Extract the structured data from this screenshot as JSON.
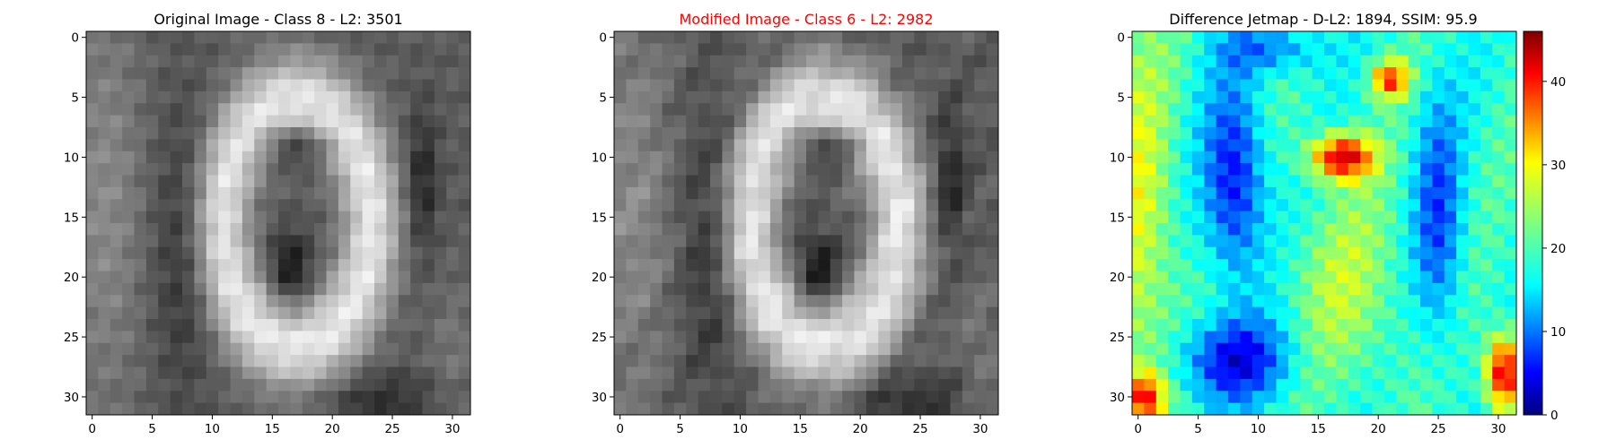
{
  "chart_data": [
    {
      "type": "heatmap",
      "title": "Original Image - Class 8 - L2: 3501",
      "colormap": "gray",
      "grid_size": 32,
      "xticks": [
        "0",
        "5",
        "10",
        "15",
        "20",
        "25",
        "30"
      ],
      "yticks": [
        "0",
        "5",
        "10",
        "15",
        "20",
        "25",
        "30"
      ],
      "xlim": [
        -0.5,
        31.5
      ],
      "ylim": [
        31.5,
        -0.5
      ]
    },
    {
      "type": "heatmap",
      "title": "Modified Image - Class 6 - L2: 2982",
      "title_color": "#ff0000",
      "colormap": "gray",
      "grid_size": 32,
      "xticks": [
        "0",
        "5",
        "10",
        "15",
        "20",
        "25",
        "30"
      ],
      "yticks": [
        "0",
        "5",
        "10",
        "15",
        "20",
        "25",
        "30"
      ],
      "xlim": [
        -0.5,
        31.5
      ],
      "ylim": [
        31.5,
        -0.5
      ]
    },
    {
      "type": "heatmap",
      "title": "Difference Jetmap - D-L2: 1894, SSIM: 95.9",
      "colormap": "jet",
      "grid_size": 32,
      "xticks": [
        "0",
        "5",
        "10",
        "15",
        "20",
        "25",
        "30"
      ],
      "yticks": [
        "0",
        "5",
        "10",
        "15",
        "20",
        "25",
        "30"
      ],
      "xlim": [
        -0.5,
        31.5
      ],
      "ylim": [
        31.5,
        -0.5
      ],
      "colorbar": {
        "range": [
          0,
          46
        ],
        "ticks": [
          "0",
          "10",
          "20",
          "30",
          "40"
        ],
        "tick_values": [
          0,
          10,
          20,
          30,
          40
        ]
      }
    }
  ]
}
